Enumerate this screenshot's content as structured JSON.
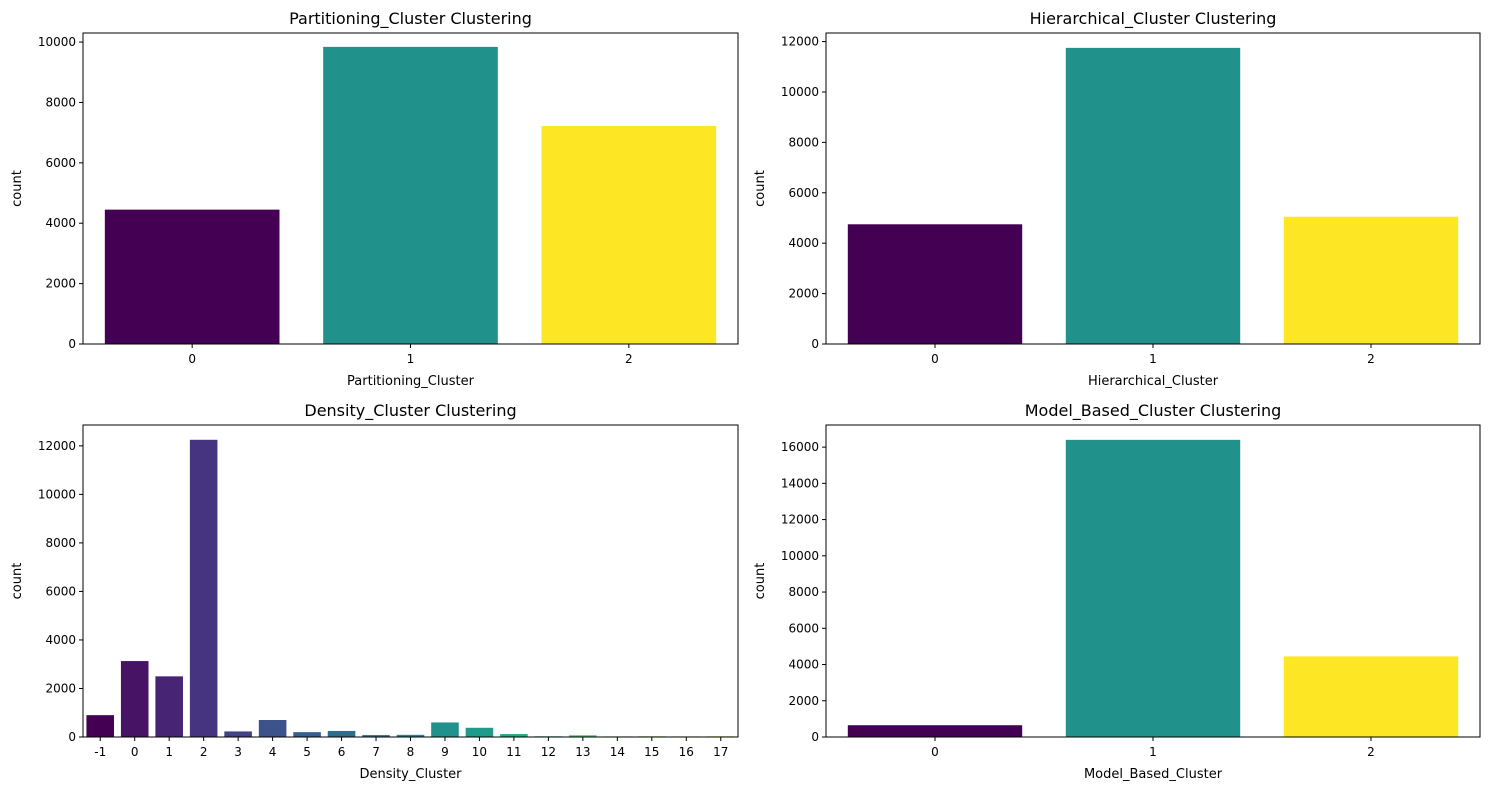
{
  "chart_data": [
    {
      "type": "bar",
      "title": "Partitioning_Cluster Clustering",
      "xlabel": "Partitioning_Cluster",
      "ylabel": "count",
      "categories": [
        "0",
        "1",
        "2"
      ],
      "values": [
        4450,
        9840,
        7220
      ],
      "colors": [
        "#440154",
        "#21918c",
        "#fde725"
      ],
      "ylim": [
        0,
        10300
      ],
      "yticks": [
        0,
        2000,
        4000,
        6000,
        8000,
        10000
      ]
    },
    {
      "type": "bar",
      "title": "Hierarchical_Cluster Clustering",
      "xlabel": "Hierarchical_Cluster",
      "ylabel": "count",
      "categories": [
        "0",
        "1",
        "2"
      ],
      "values": [
        4750,
        11750,
        5050
      ],
      "colors": [
        "#440154",
        "#21918c",
        "#fde725"
      ],
      "ylim": [
        0,
        12340
      ],
      "yticks": [
        0,
        2000,
        4000,
        6000,
        8000,
        10000,
        12000
      ]
    },
    {
      "type": "bar",
      "title": "Density_Cluster Clustering",
      "xlabel": "Density_Cluster",
      "ylabel": "count",
      "categories": [
        "-1",
        "0",
        "1",
        "2",
        "3",
        "4",
        "5",
        "6",
        "7",
        "8",
        "9",
        "10",
        "11",
        "12",
        "13",
        "14",
        "15",
        "16",
        "17"
      ],
      "values": [
        900,
        3130,
        2500,
        12250,
        230,
        700,
        200,
        250,
        80,
        90,
        600,
        380,
        120,
        30,
        70,
        25,
        30,
        25,
        30
      ],
      "colors": [
        "#440154",
        "#471365",
        "#482475",
        "#463480",
        "#414487",
        "#3b528b",
        "#355f8d",
        "#2f6c8e",
        "#2a788e",
        "#25848e",
        "#21918c",
        "#1e9c89",
        "#22a884",
        "#2fb47c",
        "#44bf70",
        "#5ec962",
        "#7ad151",
        "#9bd93c",
        "#bddf26"
      ],
      "ylim": [
        0,
        12860
      ],
      "yticks": [
        0,
        2000,
        4000,
        6000,
        8000,
        10000,
        12000
      ]
    },
    {
      "type": "bar",
      "title": "Model_Based_Cluster Clustering",
      "xlabel": "Model_Based_Cluster",
      "ylabel": "count",
      "categories": [
        "0",
        "1",
        "2"
      ],
      "values": [
        650,
        16400,
        4450
      ],
      "colors": [
        "#440154",
        "#21918c",
        "#fde725"
      ],
      "ylim": [
        0,
        17220
      ],
      "yticks": [
        0,
        2000,
        4000,
        6000,
        8000,
        10000,
        12000,
        14000,
        16000
      ]
    }
  ]
}
